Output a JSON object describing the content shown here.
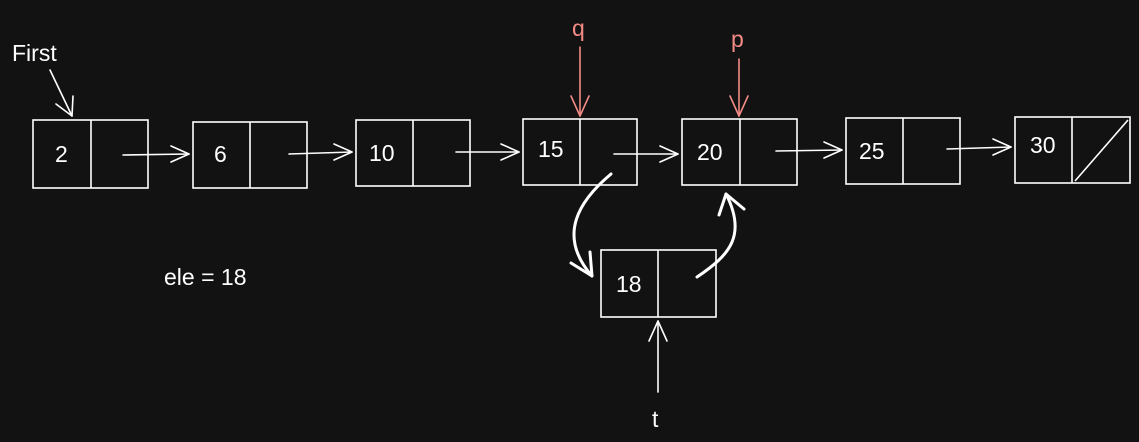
{
  "head_label": "First",
  "nodes": [
    {
      "value": "2"
    },
    {
      "value": "6"
    },
    {
      "value": "10"
    },
    {
      "value": "15"
    },
    {
      "value": "20"
    },
    {
      "value": "25"
    },
    {
      "value": "30"
    }
  ],
  "new_node": {
    "value": "18"
  },
  "pointers": {
    "q": "q",
    "p": "p",
    "t": "t"
  },
  "element_note": "ele = 18",
  "colors": {
    "background": "#121212",
    "stroke": "#ffffff",
    "pointer_accent": "#f28b86"
  }
}
